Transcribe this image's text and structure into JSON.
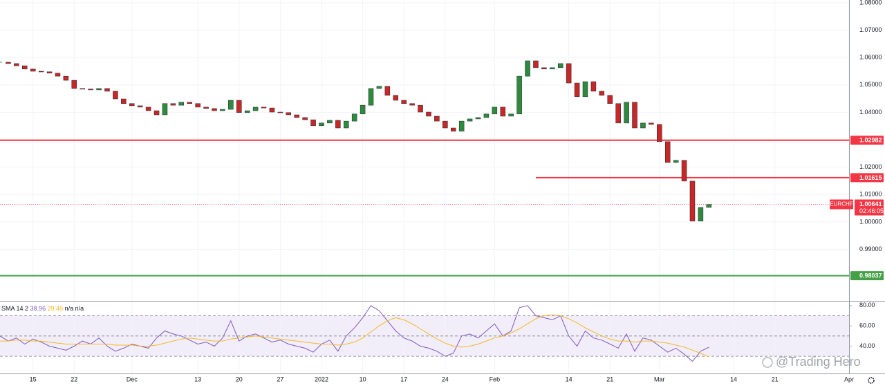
{
  "chart_data": [
    {
      "type": "candlestick",
      "symbol": "EURCHF",
      "x": [
        "2021-11-09",
        "2021-11-10",
        "2021-11-11",
        "2021-11-12",
        "2021-11-15",
        "2021-11-16",
        "2021-11-17",
        "2021-11-18",
        "2021-11-19",
        "2021-11-22",
        "2021-11-23",
        "2021-11-24",
        "2021-11-25",
        "2021-11-26",
        "2021-11-29",
        "2021-11-30",
        "2021-12-01",
        "2021-12-02",
        "2021-12-03",
        "2021-12-06",
        "2021-12-07",
        "2021-12-08",
        "2021-12-09",
        "2021-12-10",
        "2021-12-13",
        "2021-12-14",
        "2021-12-15",
        "2021-12-16",
        "2021-12-17",
        "2021-12-20",
        "2021-12-21",
        "2021-12-22",
        "2021-12-23",
        "2021-12-24",
        "2021-12-27",
        "2021-12-28",
        "2021-12-29",
        "2021-12-30",
        "2021-12-31",
        "2022-01-03",
        "2022-01-04",
        "2022-01-05",
        "2022-01-06",
        "2022-01-07",
        "2022-01-10",
        "2022-01-11",
        "2022-01-12",
        "2022-01-13",
        "2022-01-14",
        "2022-01-17",
        "2022-01-18",
        "2022-01-19",
        "2022-01-20",
        "2022-01-21",
        "2022-01-24",
        "2022-01-25",
        "2022-01-26",
        "2022-01-27",
        "2022-01-28",
        "2022-01-31",
        "2022-02-01",
        "2022-02-02",
        "2022-02-03",
        "2022-02-04",
        "2022-02-07",
        "2022-02-08",
        "2022-02-09",
        "2022-02-10",
        "2022-02-11",
        "2022-02-14",
        "2022-02-15",
        "2022-02-16",
        "2022-02-17",
        "2022-02-18",
        "2022-02-21",
        "2022-02-22",
        "2022-02-23",
        "2022-02-24",
        "2022-02-25",
        "2022-02-28",
        "2022-03-01",
        "2022-03-02",
        "2022-03-03",
        "2022-03-04",
        "2022-03-07",
        "2022-03-08",
        "2022-03-09"
      ],
      "close": [
        1.0583,
        1.0578,
        1.057,
        1.0558,
        1.055,
        1.0548,
        1.0543,
        1.0532,
        1.0517,
        1.0487,
        1.0485,
        1.0482,
        1.0487,
        1.0477,
        1.0449,
        1.0432,
        1.0424,
        1.0419,
        1.0406,
        1.0391,
        1.0432,
        1.0426,
        1.0437,
        1.0432,
        1.0419,
        1.0414,
        1.0406,
        1.0411,
        1.0444,
        1.0399,
        1.0406,
        1.0419,
        1.0416,
        1.0401,
        1.0399,
        1.0391,
        1.0381,
        1.0373,
        1.0351,
        1.0361,
        1.0371,
        1.0343,
        1.0368,
        1.0394,
        1.0426,
        1.0487,
        1.0495,
        1.0462,
        1.0444,
        1.0432,
        1.0426,
        1.0401,
        1.0386,
        1.0368,
        1.0343,
        1.0331,
        1.0368,
        1.0376,
        1.0381,
        1.0394,
        1.0419,
        1.0386,
        1.0394,
        1.0532,
        1.0588,
        1.0563,
        1.0558,
        1.0563,
        1.0578,
        1.0507,
        1.0457,
        1.0512,
        1.0477,
        1.0462,
        1.0432,
        1.0361,
        1.0437,
        1.0343,
        1.0361,
        1.0356,
        1.0293,
        1.0217,
        1.0225,
        1.0149,
        1.0003,
        1.0053,
        1.0064
      ],
      "up_color": "#2e8b3e",
      "down_color": "#c62828",
      "xlim": [
        "2021-11-09",
        "2022-04-01"
      ],
      "xticks": [
        {
          "value": "2021-11-15",
          "label": "15"
        },
        {
          "value": "2021-11-22",
          "label": "22"
        },
        {
          "value": "2021-12-01",
          "label": "Dec"
        },
        {
          "value": "2021-12-13",
          "label": "13"
        },
        {
          "value": "2021-12-20",
          "label": "20"
        },
        {
          "value": "2021-12-27",
          "label": "27"
        },
        {
          "value": "2022-01-03",
          "label": "2022"
        },
        {
          "value": "2022-01-10",
          "label": "10"
        },
        {
          "value": "2022-01-17",
          "label": "17"
        },
        {
          "value": "2022-01-24",
          "label": "24"
        },
        {
          "value": "2022-02-01",
          "label": "Feb"
        },
        {
          "value": "2022-02-14",
          "label": "14"
        },
        {
          "value": "2022-02-21",
          "label": "21"
        },
        {
          "value": "2022-03-01",
          "label": "Mar"
        },
        {
          "value": "2022-03-14",
          "label": "14"
        },
        {
          "value": "2022-03-21",
          "label": "21"
        },
        {
          "value": "2022-04-01",
          "label": "Apr"
        }
      ],
      "ylim": [
        0.9712,
        1.081
      ],
      "yticks": [
        {
          "value": 1.08,
          "label": "1.08000"
        },
        {
          "value": 1.07,
          "label": "1.07000"
        },
        {
          "value": 1.06,
          "label": "1.06000"
        },
        {
          "value": 1.05,
          "label": "1.05000"
        },
        {
          "value": 1.04,
          "label": "1.04000"
        },
        {
          "value": 1.03,
          "label": "1.03000"
        },
        {
          "value": 1.02,
          "label": "1.02000"
        },
        {
          "value": 1.01,
          "label": "1.01000"
        },
        {
          "value": 1.0,
          "label": "1.00000"
        },
        {
          "value": 0.99,
          "label": "0.99000"
        }
      ],
      "grid": true,
      "levels": [
        {
          "value": 1.02982,
          "color": "#f23645"
        },
        {
          "value": 1.01615,
          "color": "#f23645",
          "start": "2022-02-08"
        },
        {
          "value": 0.98037,
          "color": "#43a047"
        }
      ],
      "last_price": 1.00641,
      "last_color": "#f23645",
      "countdown": "02:46:05",
      "watermark": "@Trading Hero"
    },
    {
      "type": "line",
      "title": "SMA 14 2",
      "legend_extra": "n/a n/a",
      "series": [
        {
          "color": "#7e57c2",
          "values": [
            50,
            45,
            48,
            42,
            47,
            44,
            40,
            38,
            36,
            40,
            45,
            42,
            48,
            40,
            35,
            38,
            42,
            40,
            38,
            48,
            55,
            52,
            50,
            46,
            42,
            44,
            40,
            48,
            65,
            45,
            50,
            52,
            48,
            44,
            46,
            42,
            40,
            38,
            34,
            42,
            46,
            35,
            50,
            58,
            68,
            80,
            75,
            65,
            55,
            48,
            45,
            40,
            38,
            35,
            30,
            33,
            50,
            52,
            48,
            55,
            62,
            50,
            55,
            78,
            80,
            70,
            68,
            66,
            70,
            50,
            40,
            55,
            48,
            46,
            42,
            38,
            52,
            35,
            48,
            46,
            40,
            34,
            38,
            32,
            25,
            35,
            38.96
          ]
        },
        {
          "color": "#f2b824",
          "values": [
            45,
            45,
            46,
            46,
            45,
            45,
            44,
            43,
            42,
            42,
            42,
            42,
            42,
            42,
            41,
            41,
            41,
            40,
            40,
            41,
            43,
            45,
            47,
            48,
            47,
            46,
            45,
            45,
            47,
            48,
            49,
            50,
            49,
            48,
            47,
            46,
            45,
            44,
            43,
            42,
            42,
            41,
            42,
            44,
            48,
            54,
            60,
            65,
            68,
            66,
            62,
            57,
            52,
            47,
            43,
            40,
            39,
            40,
            42,
            45,
            48,
            50,
            53,
            57,
            62,
            67,
            70,
            71,
            70,
            67,
            63,
            58,
            54,
            50,
            47,
            45,
            45,
            44,
            45,
            45,
            44,
            43,
            41,
            39,
            36,
            33,
            29.45
          ]
        }
      ],
      "ylim": [
        13,
        84
      ],
      "yticks": [
        {
          "value": 80,
          "label": "80.00"
        },
        {
          "value": 60,
          "label": "60.00"
        },
        {
          "value": 40,
          "label": "40.00"
        }
      ],
      "hlines": [
        70,
        50,
        30
      ],
      "band_color": "#7e57c2"
    }
  ]
}
